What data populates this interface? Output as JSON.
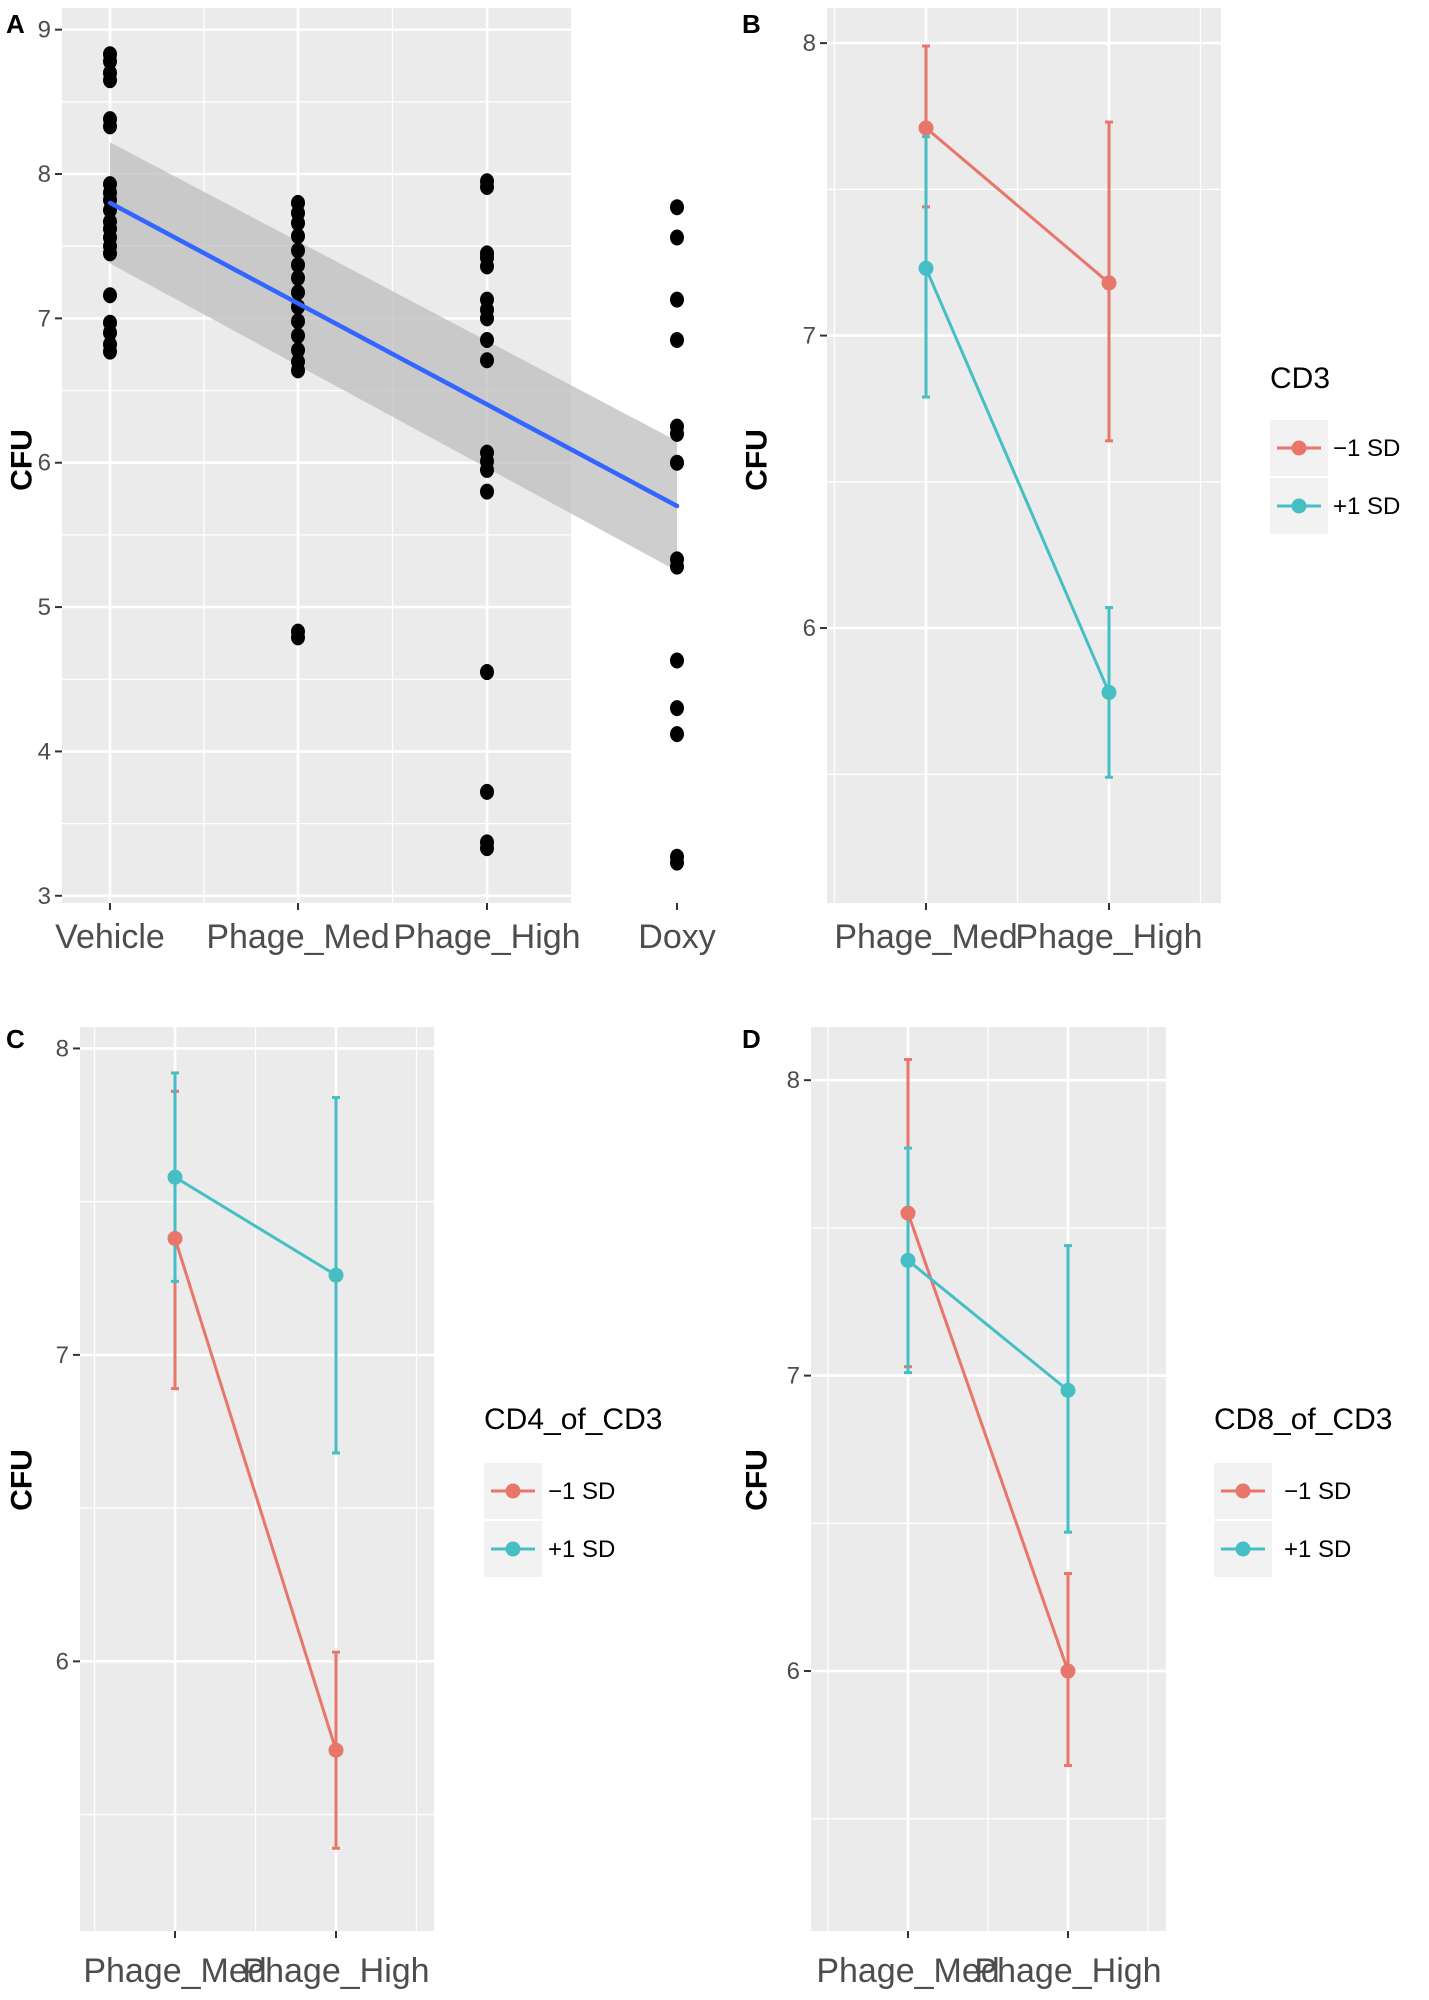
{
  "figure": {
    "colors": {
      "minus_sd": "#e8766a",
      "plus_sd": "#45bfc4",
      "fit_line": "#3366ff",
      "points": "#000000",
      "ribbon": "#bdbdbd"
    },
    "legend_labels": [
      "−1 SD",
      "+1 SD"
    ]
  },
  "chart_data": [
    {
      "panel": "A",
      "type": "scatter",
      "ylabel": "CFU",
      "xlabel": "",
      "categories": [
        "Vehicle",
        "Phage_Med",
        "Phage_High",
        "Doxy"
      ],
      "ylim": [
        2.95,
        9.15
      ],
      "yticks": [
        3,
        4,
        5,
        6,
        7,
        8,
        9
      ],
      "points": [
        {
          "category": "Vehicle",
          "values": [
            8.83,
            8.78,
            8.7,
            8.65,
            8.38,
            8.33,
            7.93,
            7.87,
            7.82,
            7.75,
            7.67,
            7.62,
            7.56,
            7.5,
            7.45,
            7.16,
            6.97,
            6.9,
            6.82,
            6.77
          ]
        },
        {
          "category": "Phage_Med",
          "values": [
            7.8,
            7.73,
            7.66,
            7.57,
            7.47,
            7.37,
            7.28,
            7.18,
            7.08,
            6.98,
            6.88,
            6.78,
            6.7,
            6.64,
            4.83,
            4.79
          ]
        },
        {
          "category": "Phage_High",
          "values": [
            7.95,
            7.91,
            7.45,
            7.42,
            7.36,
            7.13,
            7.06,
            7.0,
            6.85,
            6.71,
            6.07,
            6.01,
            5.95,
            5.8,
            4.55,
            3.72,
            3.37,
            3.33
          ]
        },
        {
          "category": "Doxy",
          "values": [
            7.77,
            7.56,
            7.13,
            6.85,
            6.25,
            6.2,
            6.0,
            5.33,
            5.28,
            4.63,
            4.3,
            4.12,
            3.27,
            3.23
          ]
        }
      ],
      "fit": {
        "start": 7.8,
        "end": 5.7,
        "ribbon_lower": [
          7.38,
          5.25
        ],
        "ribbon_upper": [
          8.22,
          6.15
        ]
      }
    },
    {
      "panel": "B",
      "type": "line",
      "ylabel": "CFU",
      "xlabel": "",
      "categories": [
        "Phage_Med",
        "Phage_High"
      ],
      "ylim": [
        5.06,
        8.12
      ],
      "yticks": [
        6,
        7,
        8
      ],
      "legend": {
        "title": "CD3"
      },
      "series": [
        {
          "name": "−1 SD",
          "values": [
            7.71,
            7.18
          ],
          "lower": [
            7.44,
            6.64
          ],
          "upper": [
            7.99,
            7.73
          ]
        },
        {
          "name": "+1 SD",
          "values": [
            7.23,
            5.78
          ],
          "lower": [
            6.79,
            5.49
          ],
          "upper": [
            7.68,
            6.07
          ]
        }
      ]
    },
    {
      "panel": "C",
      "type": "line",
      "ylabel": "CFU",
      "xlabel": "",
      "categories": [
        "Phage_Med",
        "Phage_High"
      ],
      "ylim": [
        5.12,
        8.07
      ],
      "yticks": [
        6,
        7,
        8
      ],
      "legend": {
        "title": "CD4_of_CD3"
      },
      "series": [
        {
          "name": "−1 SD",
          "values": [
            7.38,
            5.71
          ],
          "lower": [
            6.89,
            5.39
          ],
          "upper": [
            7.86,
            6.03
          ]
        },
        {
          "name": "+1 SD",
          "values": [
            7.58,
            7.26
          ],
          "lower": [
            7.24,
            6.68
          ],
          "upper": [
            7.92,
            7.84
          ]
        }
      ]
    },
    {
      "panel": "D",
      "type": "line",
      "ylabel": "CFU",
      "xlabel": "",
      "categories": [
        "Phage_Med",
        "Phage_High"
      ],
      "ylim": [
        5.12,
        8.18
      ],
      "yticks": [
        6,
        7,
        8
      ],
      "legend": {
        "title": "CD8_of_CD3"
      },
      "series": [
        {
          "name": "−1 SD",
          "values": [
            7.55,
            6.0
          ],
          "lower": [
            7.03,
            5.68
          ],
          "upper": [
            8.07,
            6.33
          ]
        },
        {
          "name": "+1 SD",
          "values": [
            7.39,
            6.95
          ],
          "lower": [
            7.01,
            6.47
          ],
          "upper": [
            7.77,
            7.44
          ]
        }
      ]
    }
  ]
}
